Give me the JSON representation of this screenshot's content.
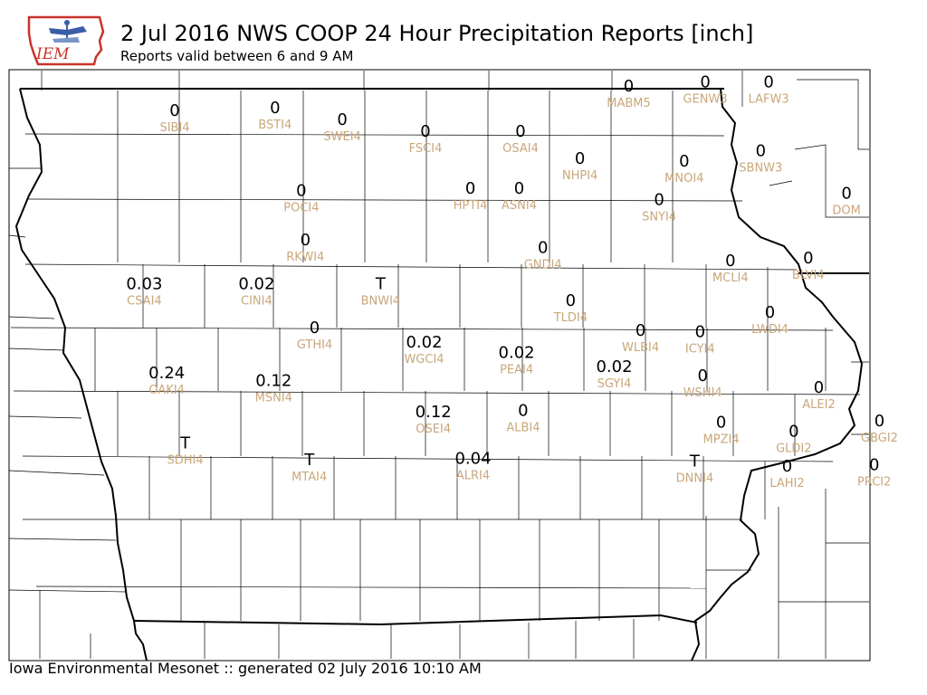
{
  "header": {
    "logo_text": "IEM",
    "title": "2 Jul 2016 NWS COOP 24 Hour Precipitation Reports [inch]",
    "subtitle": "Reports valid between 6 and 9 AM"
  },
  "footer": {
    "text": "Iowa Environmental Mesonet :: generated 02 July 2016 10:10 AM"
  },
  "colors": {
    "station_label": "#c9a77a",
    "value_text": "#000000",
    "border": "#000000",
    "logo_blue": "#3a5da8",
    "logo_red": "#c8342c"
  },
  "stations": [
    {
      "id": "SIBI4",
      "value": "0",
      "lon": -95.73,
      "lat": 43.35
    },
    {
      "id": "BSTI4",
      "value": "0",
      "lon": -94.97,
      "lat": 43.37
    },
    {
      "id": "SWEI4",
      "value": "0",
      "lon": -94.46,
      "lat": 43.28
    },
    {
      "id": "FSCI4",
      "value": "0",
      "lon": -93.83,
      "lat": 43.19
    },
    {
      "id": "OSAI4",
      "value": "0",
      "lon": -93.11,
      "lat": 43.19
    },
    {
      "id": "MABM5",
      "value": "0",
      "lon": -92.29,
      "lat": 43.54
    },
    {
      "id": "GENW3",
      "value": "0",
      "lon": -91.71,
      "lat": 43.57
    },
    {
      "id": "LAFW3",
      "value": "0",
      "lon": -91.23,
      "lat": 43.57
    },
    {
      "id": "NHPI4",
      "value": "0",
      "lon": -92.66,
      "lat": 42.98
    },
    {
      "id": "MNOI4",
      "value": "0",
      "lon": -91.87,
      "lat": 42.96
    },
    {
      "id": "SBNW3",
      "value": "0",
      "lon": -91.29,
      "lat": 43.04
    },
    {
      "id": "POCI4",
      "value": "0",
      "lon": -94.77,
      "lat": 42.73
    },
    {
      "id": "HPTI4",
      "value": "0",
      "lon": -93.49,
      "lat": 42.75
    },
    {
      "id": "ASNI4",
      "value": "0",
      "lon": -93.12,
      "lat": 42.75
    },
    {
      "id": "SNYI4",
      "value": "0",
      "lon": -92.06,
      "lat": 42.66
    },
    {
      "id": "DOM",
      "value": "0",
      "lon": -90.64,
      "lat": 42.71
    },
    {
      "id": "RKWI4",
      "value": "0",
      "lon": -94.74,
      "lat": 42.35
    },
    {
      "id": "GNDI4",
      "value": "0",
      "lon": -92.94,
      "lat": 42.29
    },
    {
      "id": "MCLI4",
      "value": "0",
      "lon": -91.52,
      "lat": 42.19
    },
    {
      "id": "BLVI4",
      "value": "0",
      "lon": -90.93,
      "lat": 42.21
    },
    {
      "id": "CSAI4",
      "value": "0.03",
      "lon": -95.96,
      "lat": 42.01
    },
    {
      "id": "CINI4",
      "value": "0.02",
      "lon": -95.11,
      "lat": 42.01
    },
    {
      "id": "BNWI4",
      "value": "T",
      "lon": -94.17,
      "lat": 42.01
    },
    {
      "id": "TLDI4",
      "value": "0",
      "lon": -92.73,
      "lat": 41.88
    },
    {
      "id": "LWDI4",
      "value": "0",
      "lon": -91.22,
      "lat": 41.79
    },
    {
      "id": "GTHI4",
      "value": "0",
      "lon": -94.67,
      "lat": 41.67
    },
    {
      "id": "WGCI4",
      "value": "0.02",
      "lon": -93.84,
      "lat": 41.56
    },
    {
      "id": "WLBI4",
      "value": "0",
      "lon": -92.2,
      "lat": 41.65
    },
    {
      "id": "ICYI4",
      "value": "0",
      "lon": -91.75,
      "lat": 41.64
    },
    {
      "id": "PEAI4",
      "value": "0.02",
      "lon": -93.14,
      "lat": 41.48
    },
    {
      "id": "SGYI4",
      "value": "0.02",
      "lon": -92.4,
      "lat": 41.37
    },
    {
      "id": "OAKI4",
      "value": "0.24",
      "lon": -95.79,
      "lat": 41.32
    },
    {
      "id": "MSNI4",
      "value": "0.12",
      "lon": -94.98,
      "lat": 41.26
    },
    {
      "id": "WSHI4",
      "value": "0",
      "lon": -91.73,
      "lat": 41.3
    },
    {
      "id": "ALEI2",
      "value": "0",
      "lon": -90.85,
      "lat": 41.21
    },
    {
      "id": "ALBI4",
      "value": "0",
      "lon": -93.09,
      "lat": 41.03
    },
    {
      "id": "OSEI4",
      "value": "0.12",
      "lon": -93.77,
      "lat": 41.02
    },
    {
      "id": "MPZI4",
      "value": "0",
      "lon": -91.59,
      "lat": 40.94
    },
    {
      "id": "GLDI2",
      "value": "0",
      "lon": -91.04,
      "lat": 40.87
    },
    {
      "id": "GBGI2",
      "value": "0",
      "lon": -90.39,
      "lat": 40.95
    },
    {
      "id": "SDHI4",
      "value": "T",
      "lon": -95.65,
      "lat": 40.78
    },
    {
      "id": "MTAI4",
      "value": "T",
      "lon": -94.71,
      "lat": 40.65
    },
    {
      "id": "ALRI4",
      "value": "0.04",
      "lon": -93.47,
      "lat": 40.66
    },
    {
      "id": "DNNI4",
      "value": "T",
      "lon": -91.79,
      "lat": 40.64
    },
    {
      "id": "LAHI2",
      "value": "0",
      "lon": -91.09,
      "lat": 40.6
    },
    {
      "id": "PRCI2",
      "value": "0",
      "lon": -90.43,
      "lat": 40.61
    }
  ]
}
